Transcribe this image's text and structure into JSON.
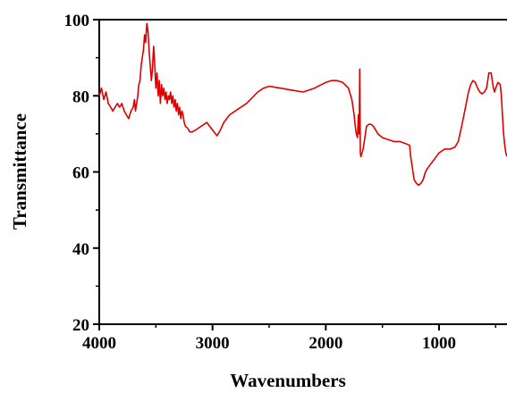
{
  "chart_data": {
    "type": "line",
    "title": "",
    "xlabel": "Wavenumbers",
    "ylabel": "Transmittance",
    "xlim": [
      4000,
      400
    ],
    "ylim": [
      20,
      100
    ],
    "x_reversed": true,
    "x_ticks": [
      4000,
      3000,
      2000,
      1000
    ],
    "x_tick_labels": [
      "4000",
      "3000",
      "2000",
      "1000"
    ],
    "y_ticks": [
      20,
      40,
      60,
      80,
      100
    ],
    "y_tick_labels": [
      "20",
      "40",
      "60",
      "80",
      "100"
    ],
    "grid": false,
    "legend": "none",
    "series": [
      {
        "color": "#dd0000",
        "x": [
          4000,
          3980,
          3960,
          3940,
          3920,
          3900,
          3880,
          3860,
          3840,
          3820,
          3800,
          3780,
          3760,
          3740,
          3720,
          3700,
          3690,
          3680,
          3670,
          3660,
          3650,
          3640,
          3630,
          3620,
          3610,
          3600,
          3590,
          3580,
          3570,
          3560,
          3550,
          3540,
          3530,
          3520,
          3510,
          3500,
          3490,
          3480,
          3470,
          3460,
          3450,
          3440,
          3430,
          3420,
          3410,
          3400,
          3390,
          3380,
          3370,
          3360,
          3350,
          3340,
          3330,
          3320,
          3310,
          3300,
          3290,
          3280,
          3270,
          3260,
          3250,
          3240,
          3220,
          3200,
          3180,
          3150,
          3100,
          3050,
          3000,
          2960,
          2930,
          2900,
          2850,
          2800,
          2700,
          2600,
          2550,
          2500,
          2400,
          2300,
          2200,
          2100,
          2000,
          1950,
          1900,
          1850,
          1800,
          1770,
          1750,
          1740,
          1730,
          1720,
          1712,
          1705,
          1700,
          1695,
          1690,
          1680,
          1670,
          1660,
          1650,
          1640,
          1620,
          1600,
          1580,
          1560,
          1540,
          1500,
          1450,
          1400,
          1350,
          1300,
          1260,
          1250,
          1240,
          1230,
          1220,
          1200,
          1180,
          1160,
          1150,
          1140,
          1120,
          1100,
          1050,
          1000,
          950,
          900,
          860,
          850,
          830,
          800,
          780,
          760,
          740,
          720,
          700,
          680,
          660,
          640,
          620,
          600,
          580,
          560,
          540,
          520,
          510,
          500,
          480,
          460,
          450,
          440,
          430,
          420,
          410,
          400
        ],
        "y": [
          80,
          82,
          79,
          81,
          78,
          77,
          76,
          77,
          78,
          77,
          78,
          76,
          75,
          74,
          76,
          77,
          79,
          76,
          78,
          80,
          83,
          84,
          88,
          90,
          92,
          96,
          94,
          99,
          97,
          92,
          88,
          84,
          87,
          93,
          88,
          82,
          86,
          80,
          84,
          78,
          83,
          80,
          82,
          79,
          81,
          78,
          80,
          79,
          81,
          78,
          80,
          77,
          79,
          76,
          78,
          75,
          77,
          74,
          76,
          75,
          73,
          72,
          71.5,
          70.5,
          70.5,
          71,
          72,
          73,
          71,
          69.5,
          71,
          73,
          75,
          76,
          78,
          81,
          82,
          82.5,
          82,
          81.5,
          81,
          82,
          83.5,
          84,
          84,
          83.5,
          82,
          79,
          75,
          72,
          70,
          69,
          75,
          70,
          87,
          65,
          64,
          65,
          66,
          68,
          70,
          72,
          72.5,
          72.5,
          72,
          71,
          70,
          69,
          68.5,
          68,
          68,
          67.5,
          67,
          64,
          62,
          60,
          58,
          57,
          56.5,
          57,
          57.5,
          58,
          60,
          61,
          63,
          65,
          66,
          66,
          66.5,
          67,
          68,
          72,
          75,
          78,
          81,
          83,
          84,
          83.5,
          82,
          81,
          80.5,
          81,
          82,
          86,
          86,
          82,
          81,
          82,
          83.5,
          83,
          80,
          75,
          70,
          67,
          65,
          64
        ]
      }
    ]
  }
}
